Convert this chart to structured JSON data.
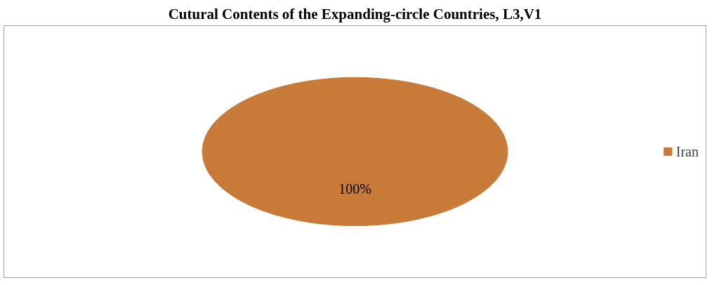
{
  "chart_data": {
    "type": "pie",
    "title": "Cutural Contents of the Expanding-circle Countries, L3,V1",
    "categories": [
      "Iran"
    ],
    "values": [
      100
    ],
    "colors": [
      "#c87a38"
    ],
    "value_labels": [
      "100%"
    ],
    "legend": "right"
  }
}
